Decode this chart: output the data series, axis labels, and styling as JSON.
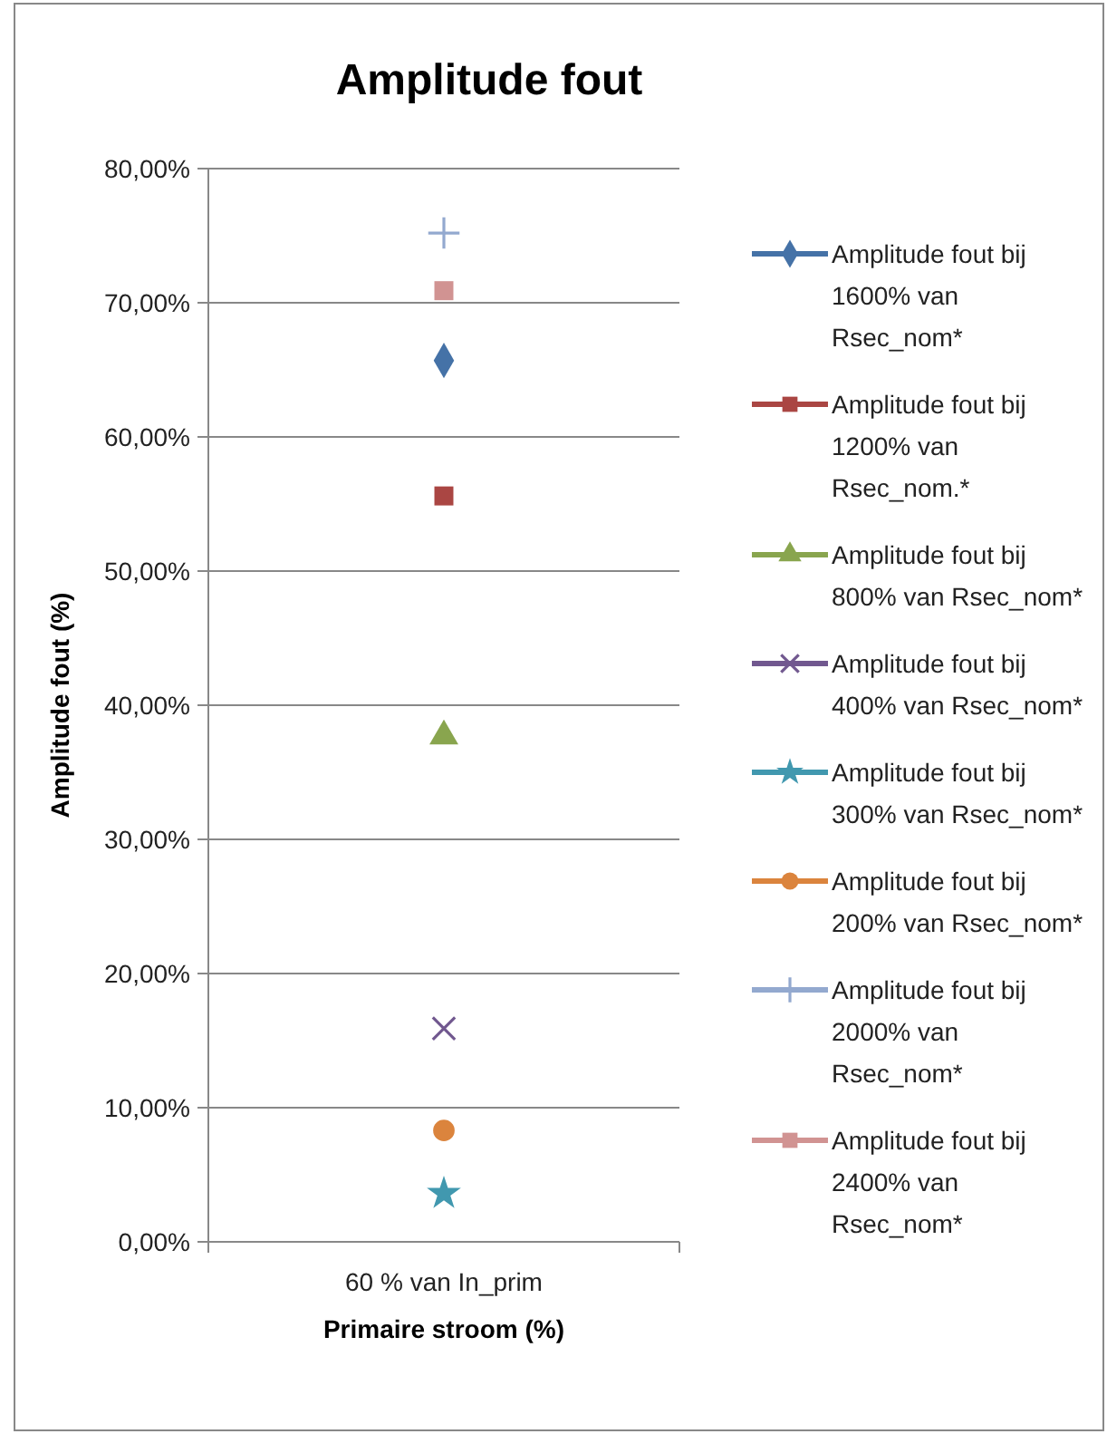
{
  "chart_data": {
    "type": "line",
    "title": "Amplitude fout",
    "xlabel": "Primaire stroom (%)",
    "ylabel": "Amplitude fout (%)",
    "categories": [
      "60 % van In_prim"
    ],
    "ylim": [
      0,
      80
    ],
    "yticks": [
      {
        "value": 0,
        "label": "0,00%"
      },
      {
        "value": 10,
        "label": "10,00%"
      },
      {
        "value": 20,
        "label": "20,00%"
      },
      {
        "value": 30,
        "label": "30,00%"
      },
      {
        "value": 40,
        "label": "40,00%"
      },
      {
        "value": 50,
        "label": "50,00%"
      },
      {
        "value": 60,
        "label": "60,00%"
      },
      {
        "value": 70,
        "label": "70,00%"
      },
      {
        "value": 80,
        "label": "80,00%"
      }
    ],
    "grid": "y",
    "legend": "right",
    "series": [
      {
        "name": "Amplitude fout bij 1600% van Rsec_nom*",
        "color": "#4572a7",
        "marker": "diamond",
        "values": [
          65.7
        ]
      },
      {
        "name": "Amplitude fout bij 1200% van Rsec_nom.*",
        "color": "#aa4643",
        "marker": "square",
        "values": [
          55.6
        ]
      },
      {
        "name": "Amplitude fout bij 800% van Rsec_nom*",
        "color": "#89a54e",
        "marker": "triangle",
        "values": [
          37.7
        ]
      },
      {
        "name": "Amplitude fout bij 400% van Rsec_nom*",
        "color": "#71588f",
        "marker": "cross",
        "values": [
          15.9
        ]
      },
      {
        "name": "Amplitude fout bij 300% van Rsec_nom*",
        "color": "#4198af",
        "marker": "star",
        "values": [
          3.6
        ]
      },
      {
        "name": "Amplitude fout bij 200% van Rsec_nom*",
        "color": "#db843d",
        "marker": "circle",
        "values": [
          8.3
        ]
      },
      {
        "name": "Amplitude fout bij 2000% van Rsec_nom*",
        "color": "#93a9cf",
        "marker": "plus",
        "values": [
          75.2
        ]
      },
      {
        "name": "Amplitude fout bij 2400% van Rsec_nom*",
        "color": "#d19392",
        "marker": "square",
        "values": [
          70.9
        ]
      }
    ]
  }
}
